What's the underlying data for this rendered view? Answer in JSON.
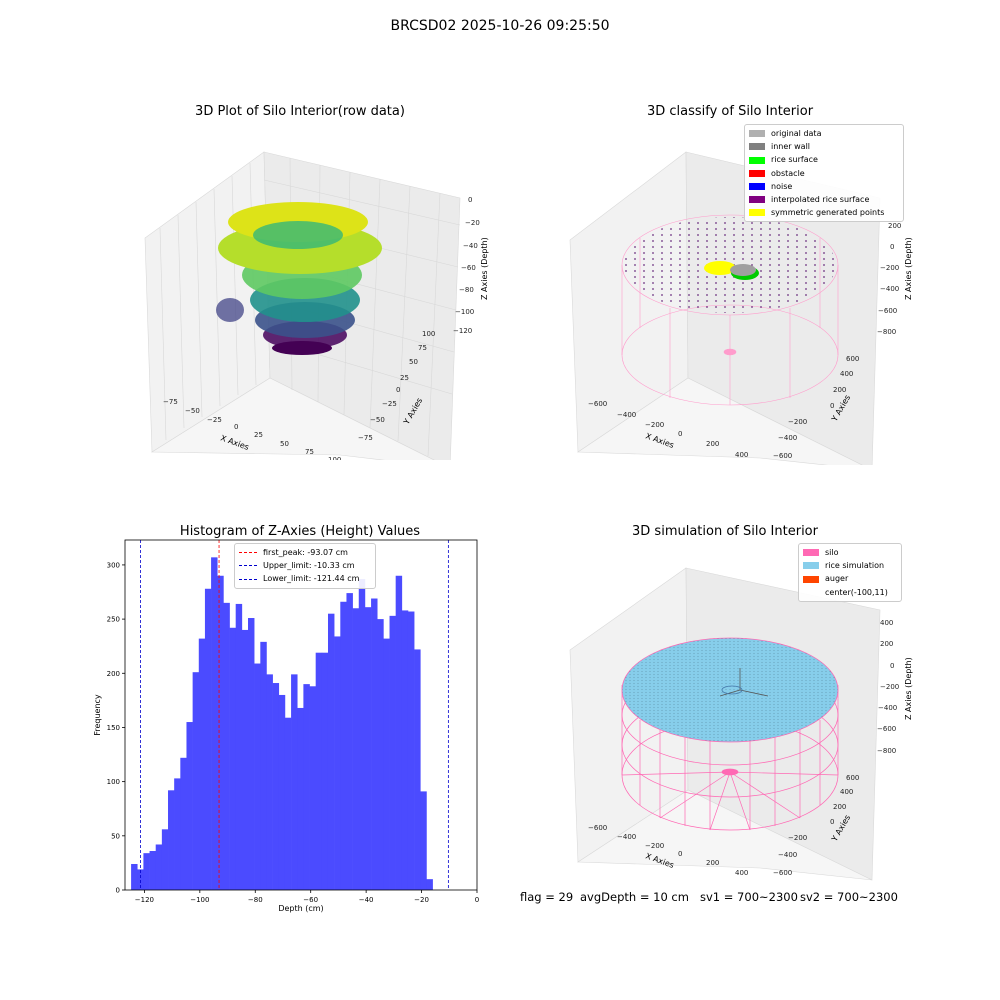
{
  "figure": {
    "suptitle": "BRCSD02 2025-10-26 09:25:50"
  },
  "panels": {
    "raw": {
      "title": "3D Plot of Silo Interior(row data)",
      "xlabel": "X Axies",
      "ylabel": "Y Axies",
      "zlabel": "Z Axies (Depth)",
      "xticks": [
        "−75",
        "−50",
        "−25",
        "0",
        "25",
        "50",
        "75",
        "100"
      ],
      "yticks": [
        "−75",
        "−50",
        "−25",
        "0",
        "25",
        "50",
        "75",
        "100"
      ],
      "zticks": [
        "0",
        "−20",
        "−40",
        "−60",
        "−80",
        "−100",
        "−120"
      ]
    },
    "classify": {
      "title": "3D classify of Silo Interior",
      "xlabel": "X Axies",
      "ylabel": "Y Axies",
      "zlabel": "Z Axies (Depth)",
      "xticks": [
        "−600",
        "−400",
        "−200",
        "0",
        "200",
        "400"
      ],
      "yticks": [
        "−600",
        "−400",
        "−200",
        "0",
        "200",
        "400",
        "600"
      ],
      "zticks": [
        "200",
        "0",
        "−200",
        "−400",
        "−600",
        "−800"
      ],
      "legend": [
        {
          "label": "original data",
          "color": "#b0b0b0"
        },
        {
          "label": "inner wall",
          "color": "#808080"
        },
        {
          "label": "rice surface",
          "color": "#00ff00"
        },
        {
          "label": "obstacle",
          "color": "#ff0000"
        },
        {
          "label": "noise",
          "color": "#0000ff"
        },
        {
          "label": "interpolated rice surface",
          "color": "#800080"
        },
        {
          "label": "symmetric generated points",
          "color": "#ffff00"
        }
      ]
    },
    "simulation": {
      "title": "3D simulation of Silo Interior",
      "xlabel": "X Axies",
      "ylabel": "Y Axies",
      "zlabel": "Z Axies (Depth)",
      "xticks": [
        "−600",
        "−400",
        "−200",
        "0",
        "200",
        "400"
      ],
      "yticks": [
        "−600",
        "−400",
        "−200",
        "0",
        "200",
        "400",
        "600"
      ],
      "zticks": [
        "400",
        "200",
        "0",
        "−200",
        "−400",
        "−600",
        "−800"
      ],
      "legend": [
        {
          "label": "silo",
          "color": "#ff69b4"
        },
        {
          "label": "rice simulation",
          "color": "#87ceeb"
        },
        {
          "label": "auger",
          "color": "#ff4500"
        },
        {
          "label": "center(-100,11)",
          "color": ""
        }
      ]
    }
  },
  "chart_data": [
    {
      "type": "bar",
      "title": "Histogram of Z-Axies (Height) Values",
      "xlabel": "Depth (cm)",
      "ylabel": "Frequency",
      "xlim": [
        -127,
        0
      ],
      "ylim": [
        0,
        323
      ],
      "xticks": [
        -120,
        -100,
        -80,
        -60,
        -40,
        -20,
        0
      ],
      "xtick_labels": [
        "−120",
        "−100",
        "−80",
        "−60",
        "−40",
        "−20",
        "0"
      ],
      "yticks": [
        0,
        50,
        100,
        150,
        200,
        250,
        300
      ],
      "bar_color": "#4b4bff",
      "bin_width": 2.22,
      "bin_edges_start": -124.8,
      "values": [
        24,
        19,
        34,
        36,
        42,
        56,
        92,
        103,
        122,
        155,
        201,
        232,
        278,
        307,
        290,
        265,
        242,
        264,
        240,
        251,
        209,
        229,
        199,
        191,
        180,
        159,
        199,
        168,
        190,
        188,
        219,
        219,
        255,
        234,
        266,
        274,
        260,
        287,
        261,
        269,
        250,
        232,
        253,
        290,
        258,
        257,
        222,
        91,
        10
      ],
      "vlines": [
        {
          "x": -93.07,
          "color": "#ff0000",
          "label": "first_peak: -93.07 cm"
        },
        {
          "x": -10.33,
          "color": "#0000cc",
          "label": "Upper_limit: -10.33 cm"
        },
        {
          "x": -121.44,
          "color": "#0000cc",
          "label": "Lower_limit: -121.44 cm"
        }
      ],
      "legend_position": "top-center"
    }
  ],
  "footer": {
    "flag": "flag = 29",
    "avg_depth": "avgDepth = 10 cm",
    "sv1": "sv1 = 700~2300",
    "sv2": "sv2 = 700~2300"
  }
}
